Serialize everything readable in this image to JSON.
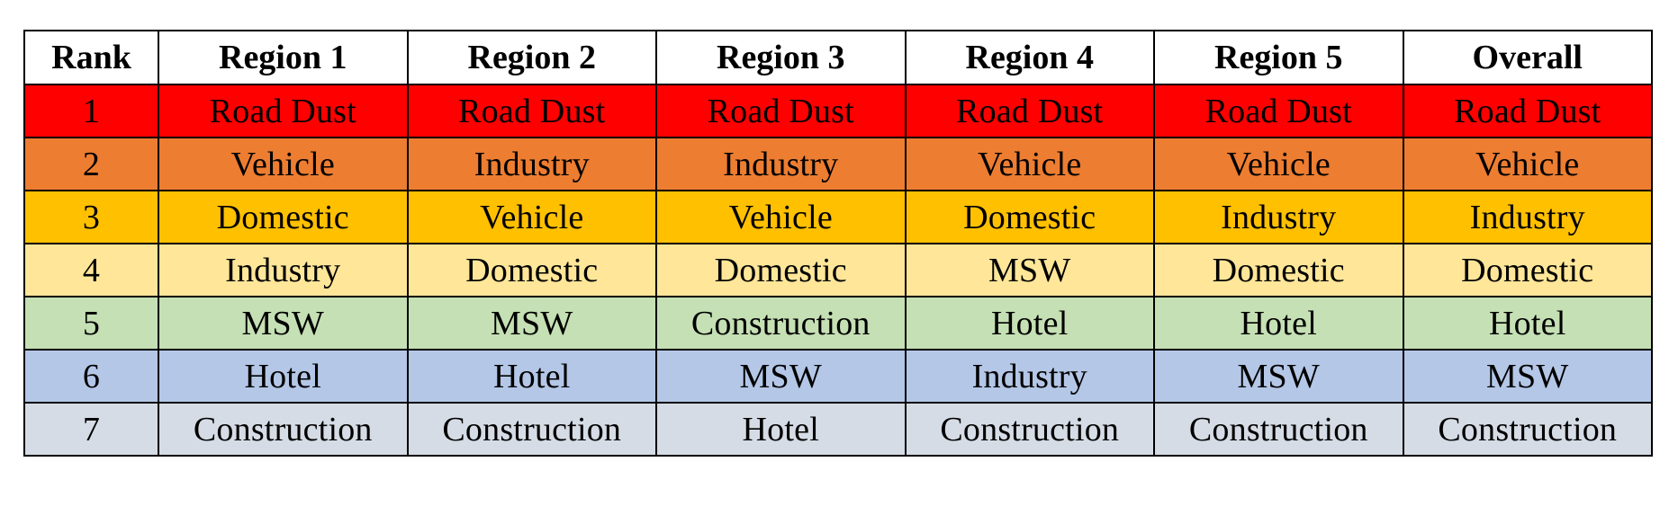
{
  "table": {
    "headers": [
      "Rank",
      "Region 1",
      "Region 2",
      "Region 3",
      "Region 4",
      "Region 5",
      "Overall"
    ],
    "rows": [
      {
        "rank": "1",
        "color": "#ff0000",
        "cells": [
          "Road Dust",
          "Road Dust",
          "Road Dust",
          "Road Dust",
          "Road Dust",
          "Road Dust"
        ]
      },
      {
        "rank": "2",
        "color": "#ed7d31",
        "cells": [
          "Vehicle",
          "Industry",
          "Industry",
          "Vehicle",
          "Vehicle",
          "Vehicle"
        ]
      },
      {
        "rank": "3",
        "color": "#ffc000",
        "cells": [
          "Domestic",
          "Vehicle",
          "Vehicle",
          "Domestic",
          "Industry",
          "Industry"
        ]
      },
      {
        "rank": "4",
        "color": "#ffe699",
        "cells": [
          "Industry",
          "Domestic",
          "Domestic",
          "MSW",
          "Domestic",
          "Domestic"
        ]
      },
      {
        "rank": "5",
        "color": "#c5e0b4",
        "cells": [
          "MSW",
          "MSW",
          "Construction",
          "Hotel",
          "Hotel",
          "Hotel"
        ]
      },
      {
        "rank": "6",
        "color": "#b4c7e7",
        "cells": [
          "Hotel",
          "Hotel",
          "MSW",
          "Industry",
          "MSW",
          "MSW"
        ]
      },
      {
        "rank": "7",
        "color": "#d6dce5",
        "cells": [
          "Construction",
          "Construction",
          "Hotel",
          "Construction",
          "Construction",
          "Construction"
        ]
      }
    ]
  }
}
